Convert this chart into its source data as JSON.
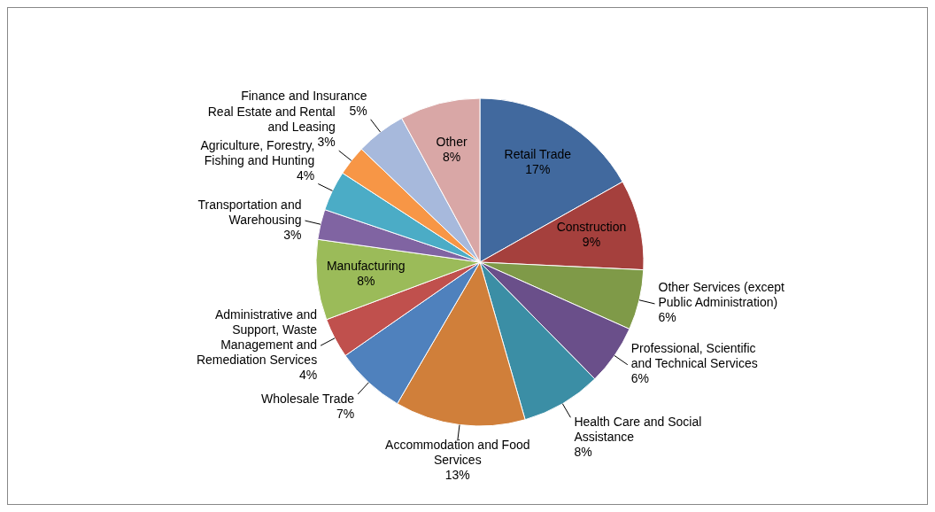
{
  "chart_data": {
    "type": "pie",
    "categories": [
      "Retail Trade",
      "Construction",
      "Other Services (except Public Administration)",
      "Professional, Scientific and Technical Services",
      "Health Care and Social Assistance",
      "Accommodation and Food Services",
      "Wholesale Trade",
      "Administrative and Support, Waste Management and Remediation Services",
      "Manufacturing",
      "Transportation and Warehousing",
      "Agriculture, Forestry, Fishing and Hunting",
      "Real Estate and Rental and Leasing",
      "Finance and Insurance",
      "Other"
    ],
    "values": [
      17,
      9,
      6,
      6,
      8,
      13,
      7,
      4,
      8,
      3,
      4,
      3,
      5,
      8
    ],
    "value_labels": [
      "17%",
      "9%",
      "6%",
      "6%",
      "8%",
      "13%",
      "7%",
      "4%",
      "8%",
      "3%",
      "4%",
      "3%",
      "5%",
      "8%"
    ],
    "colors": [
      "#41699e",
      "#a5403d",
      "#7f9a48",
      "#6a4f8a",
      "#3b8ea5",
      "#d07f3a",
      "#4f81bd",
      "#c0504d",
      "#9bbb59",
      "#8064a2",
      "#4bacc6",
      "#f79646",
      "#a7b9dc",
      "#d9a7a6"
    ]
  }
}
